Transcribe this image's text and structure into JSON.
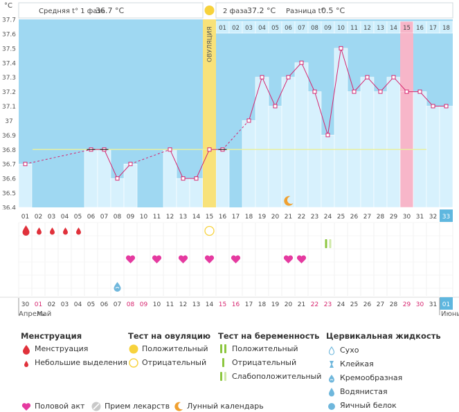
{
  "header": {
    "unit_label": "°C",
    "phase1_label": "Средняя t° 1 фаза",
    "phase1_value": "36.7 °C",
    "phase2_label": "2 фаза",
    "phase2_value": "37.2 °C",
    "diff_label": "Разница t°",
    "diff_value": "0.5 °C",
    "ovulation_label": "ОВУЛЯЦИЯ"
  },
  "chart_data": {
    "type": "line",
    "title": "",
    "xlabel": "",
    "ylabel": "°C",
    "ylim": [
      36.4,
      37.7
    ],
    "yticks": [
      "36.4",
      "36.5",
      "36.6",
      "36.7",
      "36.8",
      "36.9",
      "37",
      "37.1",
      "37.2",
      "37.3",
      "37.4",
      "37.5",
      "37.6",
      "37.7"
    ],
    "cycle_days": [
      "01",
      "02",
      "03",
      "04",
      "05",
      "06",
      "07",
      "08",
      "09",
      "10",
      "11",
      "12",
      "13",
      "14",
      "15",
      "16",
      "17",
      "18",
      "19",
      "20",
      "21",
      "22",
      "23",
      "24",
      "25",
      "26",
      "27",
      "28",
      "29",
      "30",
      "31",
      "32",
      "33"
    ],
    "phase2_day_labels": [
      "01",
      "02",
      "03",
      "04",
      "05",
      "06",
      "07",
      "08",
      "09",
      "10",
      "11",
      "12",
      "13",
      "14",
      "15",
      "16",
      "17",
      "18"
    ],
    "phase2_highlight": "15",
    "temperatures": [
      36.7,
      null,
      null,
      null,
      null,
      36.8,
      36.8,
      36.6,
      36.7,
      null,
      null,
      36.8,
      36.6,
      36.6,
      36.8,
      36.8,
      null,
      37.0,
      37.3,
      37.1,
      37.3,
      37.4,
      37.2,
      36.9,
      37.5,
      37.2,
      37.3,
      37.2,
      37.3,
      37.2,
      37.2,
      37.1,
      37.1
    ],
    "coverline": 36.8,
    "ovulation_day": 15,
    "current_day": 33,
    "calendar_dates": [
      "30",
      "01",
      "02",
      "03",
      "04",
      "05",
      "06",
      "07",
      "08",
      "09",
      "10",
      "11",
      "12",
      "13",
      "14",
      "15",
      "16",
      "17",
      "18",
      "19",
      "20",
      "21",
      "22",
      "23",
      "24",
      "25",
      "26",
      "27",
      "28",
      "29",
      "30",
      "31",
      "01"
    ],
    "weekend_dates_idx": [
      1,
      8,
      9,
      15,
      16,
      22,
      23,
      29,
      30
    ],
    "month_start_label": "Апрель",
    "month_mid_label": "Май",
    "month_end_label": "Июнь",
    "markers": {
      "menstruation_heavy": [
        1
      ],
      "menstruation_light": [
        2,
        3,
        4,
        5
      ],
      "ovulation_test_negative": [
        15
      ],
      "pregnancy_test_weak": [
        24
      ],
      "intercourse": [
        9,
        11,
        13,
        15,
        17,
        21,
        22
      ],
      "cervical_creamy": [
        8
      ],
      "lunar_calendar": [
        21
      ]
    },
    "colors": {
      "phase1_bg": "#9fd8f2",
      "phase2_bg": "#cdeefc",
      "bar": "#d7f1fd",
      "line": "#d6246e",
      "ovulation": "#f8e27a",
      "highlight": "#f7b6c9",
      "coverline": "#e8f0a0"
    }
  },
  "legend": {
    "menstruation": {
      "title": "Менструация",
      "items": [
        "Менструация",
        "Небольшие выделения"
      ]
    },
    "ovulation_test": {
      "title": "Тест на овуляцию",
      "items": [
        "Положительный",
        "Отрицательный"
      ]
    },
    "pregnancy_test": {
      "title": "Тест на беременность",
      "items": [
        "Положительный",
        "Отрицательный",
        "Слабоположительный"
      ]
    },
    "cervical": {
      "title": "Цервикальная жидкость",
      "items": [
        "Сухо",
        "Клейкая",
        "Кремообразная",
        "Водянистая",
        "Яичный белок"
      ]
    },
    "bottom": [
      "Половой акт",
      "Прием лекарств",
      "Лунный календарь"
    ],
    "icons": {
      "menstruation": "blood-drop-icon",
      "ovulation_positive": "filled-circle-icon",
      "ovulation_negative": "hollow-circle-icon",
      "pregnancy_positive": "double-bar-icon",
      "pregnancy_negative": "single-bar-icon",
      "pregnancy_weak": "double-bar-light-icon",
      "cervical_dry": "hollow-drop-icon",
      "cervical_sticky": "hourglass-icon",
      "cervical_creamy": "creamy-drop-icon",
      "cervical_watery": "water-drop-icon",
      "cervical_eggwhite": "round-drop-icon",
      "intercourse": "heart-icon",
      "medication": "pill-icon",
      "lunar": "crescent-moon-icon"
    }
  }
}
